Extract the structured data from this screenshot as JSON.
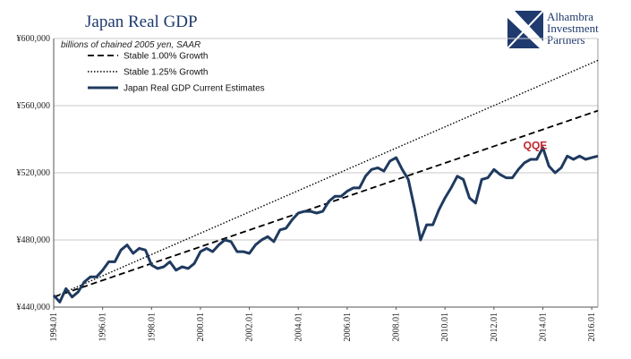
{
  "chart_data": {
    "type": "line",
    "title": "Japan Real GDP",
    "subtitle": "billions of chained 2005 yen, SAAR",
    "xlabel": "",
    "ylabel": "",
    "ylim": [
      440000,
      600000
    ],
    "xlim": [
      1994.0,
      2016.25
    ],
    "y_ticks": [
      "¥440,000",
      "¥480,000",
      "¥520,000",
      "¥560,000",
      "¥600,000"
    ],
    "y_tick_values": [
      440000,
      480000,
      520000,
      560000,
      600000
    ],
    "x_ticks": [
      "1994.01",
      "1996.01",
      "1998.01",
      "2000.01",
      "2002.01",
      "2004.01",
      "2006.01",
      "2008.01",
      "2010.01",
      "2012.01",
      "2014.01",
      "2016.01"
    ],
    "x_tick_values": [
      1994,
      1996,
      1998,
      2000,
      2002,
      2004,
      2006,
      2008,
      2010,
      2012,
      2014,
      2016
    ],
    "grid": "horizontal",
    "legend_position": "top-left",
    "annotation": {
      "text": "QQE",
      "x": 2013.2,
      "y": 530000,
      "color": "#c0262c"
    },
    "series": [
      {
        "name": "Stable 1.00% Growth",
        "style": "dashed",
        "color": "#000000",
        "x": [
          1994.0,
          2016.25
        ],
        "values": [
          446000,
          557000
        ]
      },
      {
        "name": "Stable 1.25% Growth",
        "style": "dotted",
        "color": "#000000",
        "x": [
          1994.0,
          2016.25
        ],
        "values": [
          446000,
          587000
        ]
      },
      {
        "name": "Japan Real GDP Current Estimates",
        "style": "solid",
        "color": "#1f3a5f",
        "x": [
          1994.0,
          1994.25,
          1994.5,
          1994.75,
          1995.0,
          1995.25,
          1995.5,
          1995.75,
          1996.0,
          1996.25,
          1996.5,
          1996.75,
          1997.0,
          1997.25,
          1997.5,
          1997.75,
          1998.0,
          1998.25,
          1998.5,
          1998.75,
          1999.0,
          1999.25,
          1999.5,
          1999.75,
          2000.0,
          2000.25,
          2000.5,
          2000.75,
          2001.0,
          2001.25,
          2001.5,
          2001.75,
          2002.0,
          2002.25,
          2002.5,
          2002.75,
          2003.0,
          2003.25,
          2003.5,
          2003.75,
          2004.0,
          2004.25,
          2004.5,
          2004.75,
          2005.0,
          2005.25,
          2005.5,
          2005.75,
          2006.0,
          2006.25,
          2006.5,
          2006.75,
          2007.0,
          2007.25,
          2007.5,
          2007.75,
          2008.0,
          2008.25,
          2008.5,
          2008.75,
          2009.0,
          2009.25,
          2009.5,
          2009.75,
          2010.0,
          2010.25,
          2010.5,
          2010.75,
          2011.0,
          2011.25,
          2011.5,
          2011.75,
          2012.0,
          2012.25,
          2012.5,
          2012.75,
          2013.0,
          2013.25,
          2013.5,
          2013.75,
          2014.0,
          2014.25,
          2014.5,
          2014.75,
          2015.0,
          2015.25,
          2015.5,
          2015.75,
          2016.0,
          2016.25
        ],
        "values": [
          447000,
          443000,
          451000,
          446000,
          449000,
          455000,
          458000,
          458000,
          462000,
          467000,
          467000,
          474000,
          477000,
          472000,
          475000,
          474000,
          465000,
          463000,
          464000,
          467000,
          462000,
          464000,
          463000,
          466000,
          473000,
          475000,
          473000,
          477000,
          480000,
          479000,
          473000,
          473000,
          472000,
          477000,
          480000,
          482000,
          479000,
          486000,
          487000,
          492000,
          496000,
          497000,
          497000,
          496000,
          497000,
          503000,
          506000,
          506000,
          509000,
          511000,
          511000,
          518000,
          522000,
          523000,
          521000,
          527000,
          529000,
          522000,
          516000,
          499000,
          480000,
          489000,
          489000,
          498000,
          505000,
          511000,
          518000,
          516000,
          505000,
          502000,
          516000,
          517000,
          522000,
          519000,
          517000,
          517000,
          522000,
          526000,
          528000,
          528000,
          535000,
          524000,
          520000,
          523000,
          530000,
          528000,
          530000,
          528000,
          529000,
          530000
        ]
      }
    ]
  },
  "logo": {
    "line1": "Alhambra",
    "line2": "Investment",
    "line3": "Partners"
  }
}
